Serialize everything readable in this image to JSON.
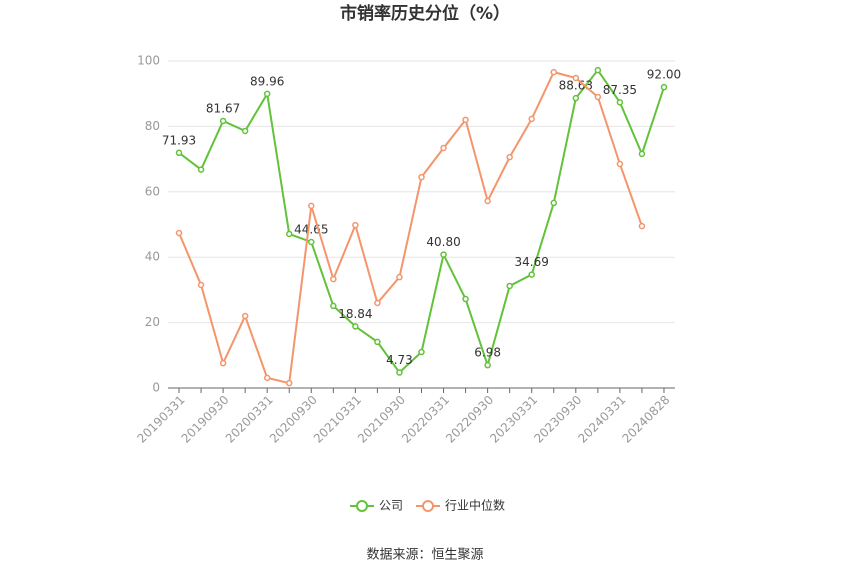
{
  "chart_data": {
    "type": "line",
    "title": "市销率历史分位（%）",
    "categories": [
      "20190331",
      null,
      "20190930",
      null,
      "20200331",
      null,
      "20200930",
      null,
      "20210331",
      null,
      "20210930",
      null,
      "20220331",
      null,
      "20220930",
      null,
      "20230331",
      null,
      "20230930",
      null,
      "20240331",
      null,
      "20240828"
    ],
    "series": [
      {
        "name": "公司",
        "color": "#62c23a",
        "values": [
          71.93,
          66.8,
          81.67,
          78.6,
          89.96,
          47.1,
          44.65,
          25.1,
          18.84,
          14.1,
          4.73,
          11.0,
          40.8,
          27.2,
          6.98,
          31.2,
          34.69,
          56.6,
          88.63,
          97.2,
          87.35,
          71.6,
          92.0
        ],
        "value_labels": [
          "71.93",
          null,
          "81.67",
          null,
          "89.96",
          null,
          "44.65",
          null,
          "18.84",
          null,
          "4.73",
          null,
          "40.80",
          null,
          "6.98",
          null,
          "34.69",
          null,
          "88.63",
          null,
          "87.35",
          null,
          "92.00"
        ]
      },
      {
        "name": "行业中位数",
        "color": "#f4956b",
        "values": [
          47.4,
          31.5,
          7.6,
          22.0,
          3.1,
          1.5,
          55.7,
          33.3,
          49.8,
          26.0,
          33.9,
          64.5,
          73.4,
          82.0,
          57.2,
          70.6,
          82.3,
          96.6,
          94.8,
          89.0,
          68.5,
          49.5,
          null
        ]
      }
    ],
    "ylim": [
      0,
      100
    ],
    "yticks": [
      0,
      20,
      40,
      60,
      80,
      100
    ],
    "grid": true,
    "legend": "bottom",
    "source": "数据来源：恒生聚源"
  }
}
